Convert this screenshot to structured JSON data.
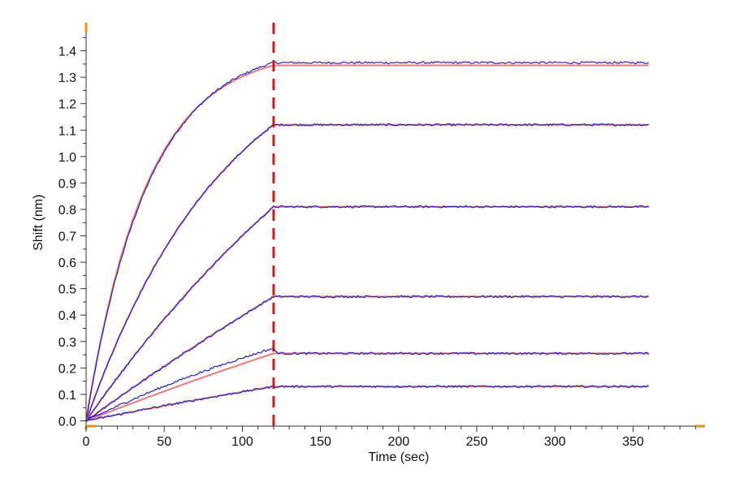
{
  "chart_data": {
    "type": "line",
    "title": "",
    "xlabel": "Time (sec)",
    "ylabel": "Shift (nm)",
    "xlim": [
      0,
      395
    ],
    "ylim": [
      -0.02,
      1.5
    ],
    "xticks": [
      0,
      50,
      100,
      150,
      200,
      250,
      300,
      350
    ],
    "yticks": [
      0.0,
      0.1,
      0.2,
      0.3,
      0.4,
      0.5,
      0.6,
      0.7,
      0.8,
      0.9,
      1.0,
      1.1,
      1.2,
      1.3,
      1.4
    ],
    "xtick_labels": [
      "0",
      "50",
      "100",
      "150",
      "200",
      "250",
      "300",
      "350"
    ],
    "ytick_labels": [
      "0.0",
      "0.1",
      "0.2",
      "0.3",
      "0.4",
      "0.5",
      "0.6",
      "0.7",
      "0.8",
      "0.9",
      "1.0",
      "1.1",
      "1.2",
      "1.3",
      "1.4"
    ],
    "grid": false,
    "legend": "none",
    "vertical_marker": {
      "x": 120,
      "style": "dashed",
      "color": "#c81e1e"
    },
    "phases": {
      "association_end": 120,
      "end": 360
    },
    "colors": {
      "measured": "#2222cc",
      "fit": "#f07878",
      "axis": "#e8901a",
      "text": "#111111"
    },
    "curves": [
      {
        "plateau": 1.355,
        "fit_plateau": 1.345,
        "k": 0.025,
        "fit_k": 0.026
      },
      {
        "plateau": 1.12,
        "fit_plateau": 1.12,
        "k": 0.011,
        "fit_k": 0.011
      },
      {
        "plateau": 0.81,
        "fit_plateau": 0.81,
        "k": 0.004,
        "fit_k": 0.004
      },
      {
        "plateau": 0.47,
        "fit_plateau": 0.47,
        "k": 0.0015,
        "fit_k": 0.0015
      },
      {
        "plateau": 0.255,
        "fit_plateau": 0.255,
        "assoc_end": 0.275,
        "k": 0.004,
        "fit_k": 0.0015
      },
      {
        "plateau": 0.13,
        "fit_plateau": 0.13,
        "k": 0.0015,
        "fit_k": 0.0015
      }
    ]
  }
}
